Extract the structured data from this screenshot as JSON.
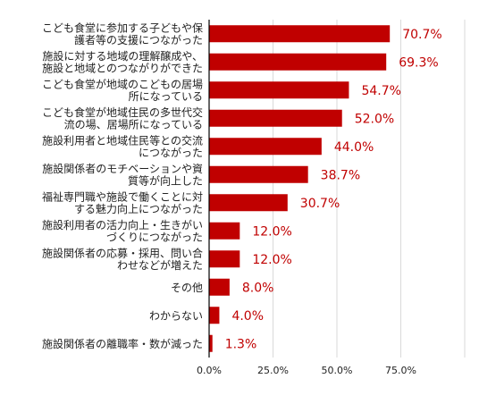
{
  "chart_data": {
    "type": "bar",
    "orientation": "horizontal",
    "categories": [
      [
        "こども食堂に参加する子どもや保",
        "護者等の支援につながった"
      ],
      [
        "施設に対する地域の理解醸成や、",
        "施設と地域とのつながりができた"
      ],
      [
        "こども食堂が地域のこどもの居場",
        "所になっている"
      ],
      [
        "こども食堂が地域住民の多世代交",
        "流の場、居場所になっている"
      ],
      [
        "施設利用者と地域住民等との交流",
        "につながった"
      ],
      [
        "施設関係者のモチベーションや資",
        "質等が向上した"
      ],
      [
        "福祉専門職や施設で働くことに対",
        "する魅力向上につながった"
      ],
      [
        "施設利用者の活力向上・生きがい",
        "づくりにつながった"
      ],
      [
        "施設関係者の応募・採用、問い合",
        "わせなどが増えた"
      ],
      [
        "その他"
      ],
      [
        "わからない"
      ],
      [
        "施設関係者の離職率・数が減った"
      ]
    ],
    "values": [
      70.7,
      69.3,
      54.7,
      52.0,
      44.0,
      38.7,
      30.7,
      12.0,
      12.0,
      8.0,
      4.0,
      1.3
    ],
    "value_labels": [
      "70.7%",
      "69.3%",
      "54.7%",
      "52.0%",
      "44.0%",
      "38.7%",
      "30.7%",
      "12.0%",
      "12.0%",
      "8.0%",
      "4.0%",
      "1.3%"
    ],
    "xlim": [
      0,
      100
    ],
    "x_ticks": [
      0,
      25,
      50,
      75
    ],
    "x_tick_labels": [
      "0.0%",
      "25.0%",
      "50.0%",
      "75.0%"
    ],
    "grid": "vertical",
    "bar_color": "#c00000",
    "label_color": "#c00000",
    "grid_color": "#d9d9d9",
    "axis_color": "#000000",
    "text_color": "#222222"
  }
}
